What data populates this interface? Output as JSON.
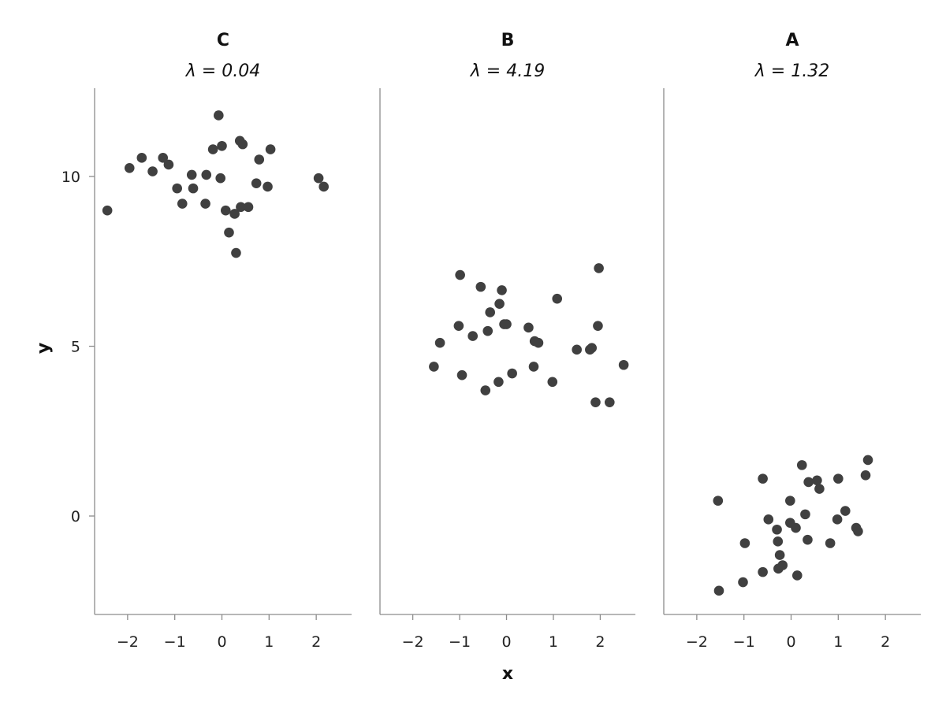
{
  "chart_data": {
    "type": "scatter",
    "xlabel": "x",
    "ylabel": "y",
    "shared_y": true,
    "ylim": [
      -2.9,
      12.6
    ],
    "yticks": [
      0,
      5,
      10
    ],
    "xticks": [
      -2,
      -1,
      0,
      1,
      2
    ],
    "grid": false,
    "point_color": "#404040",
    "axis_color": "#8c8c8c",
    "panels": [
      {
        "title": "C",
        "subtitle": "λ = 0.04",
        "xlim": [
          -2.7,
          2.75
        ],
        "points": [
          [
            -2.43,
            9.0
          ],
          [
            -1.96,
            10.25
          ],
          [
            -1.7,
            10.55
          ],
          [
            -1.47,
            10.15
          ],
          [
            -1.25,
            10.55
          ],
          [
            -1.13,
            10.35
          ],
          [
            -0.95,
            9.65
          ],
          [
            -0.84,
            9.2
          ],
          [
            -0.64,
            10.05
          ],
          [
            -0.61,
            9.65
          ],
          [
            -0.35,
            9.2
          ],
          [
            -0.33,
            10.05
          ],
          [
            -0.19,
            10.8
          ],
          [
            -0.07,
            11.8
          ],
          [
            -0.03,
            9.95
          ],
          [
            0.0,
            10.9
          ],
          [
            0.08,
            9.0
          ],
          [
            0.15,
            8.35
          ],
          [
            0.27,
            8.9
          ],
          [
            0.3,
            7.75
          ],
          [
            0.38,
            11.05
          ],
          [
            0.4,
            9.1
          ],
          [
            0.44,
            10.95
          ],
          [
            0.56,
            9.1
          ],
          [
            0.73,
            9.8
          ],
          [
            0.79,
            10.5
          ],
          [
            0.97,
            9.7
          ],
          [
            1.03,
            10.8
          ],
          [
            2.05,
            9.95
          ],
          [
            2.16,
            9.7
          ]
        ]
      },
      {
        "title": "B",
        "subtitle": "λ = 4.19",
        "xlim": [
          -2.7,
          2.75
        ],
        "points": [
          [
            -1.55,
            4.4
          ],
          [
            -1.42,
            5.1
          ],
          [
            -1.02,
            5.6
          ],
          [
            -0.99,
            7.1
          ],
          [
            -0.95,
            4.15
          ],
          [
            -0.72,
            5.3
          ],
          [
            -0.55,
            6.75
          ],
          [
            -0.45,
            3.7
          ],
          [
            -0.4,
            5.45
          ],
          [
            -0.35,
            6.0
          ],
          [
            -0.17,
            3.95
          ],
          [
            -0.15,
            6.25
          ],
          [
            -0.1,
            6.65
          ],
          [
            -0.05,
            5.65
          ],
          [
            0.0,
            5.65
          ],
          [
            0.12,
            4.2
          ],
          [
            0.47,
            5.55
          ],
          [
            0.58,
            4.4
          ],
          [
            0.6,
            5.15
          ],
          [
            0.68,
            5.1
          ],
          [
            0.98,
            3.95
          ],
          [
            1.08,
            6.4
          ],
          [
            1.5,
            4.9
          ],
          [
            1.78,
            4.9
          ],
          [
            1.82,
            4.95
          ],
          [
            1.9,
            3.35
          ],
          [
            1.95,
            5.6
          ],
          [
            1.97,
            7.3
          ],
          [
            2.2,
            3.35
          ],
          [
            2.5,
            4.45
          ]
        ]
      },
      {
        "title": "A",
        "subtitle": "λ = 1.32",
        "xlim": [
          -2.7,
          2.75
        ],
        "points": [
          [
            -1.55,
            0.45
          ],
          [
            -1.53,
            -2.2
          ],
          [
            -1.02,
            -1.95
          ],
          [
            -0.98,
            -0.8
          ],
          [
            -0.6,
            -1.65
          ],
          [
            -0.6,
            1.1
          ],
          [
            -0.48,
            -0.1
          ],
          [
            -0.3,
            -0.4
          ],
          [
            -0.28,
            -0.75
          ],
          [
            -0.27,
            -1.55
          ],
          [
            -0.24,
            -1.15
          ],
          [
            -0.18,
            -1.45
          ],
          [
            -0.02,
            -0.2
          ],
          [
            -0.02,
            0.45
          ],
          [
            0.1,
            -0.35
          ],
          [
            0.13,
            -1.75
          ],
          [
            0.23,
            1.5
          ],
          [
            0.3,
            0.05
          ],
          [
            0.35,
            -0.7
          ],
          [
            0.37,
            1.0
          ],
          [
            0.55,
            1.05
          ],
          [
            0.6,
            0.8
          ],
          [
            0.83,
            -0.8
          ],
          [
            0.98,
            -0.1
          ],
          [
            1.0,
            1.1
          ],
          [
            1.15,
            0.15
          ],
          [
            1.38,
            -0.35
          ],
          [
            1.42,
            -0.45
          ],
          [
            1.58,
            1.2
          ],
          [
            1.63,
            1.65
          ]
        ]
      }
    ]
  }
}
